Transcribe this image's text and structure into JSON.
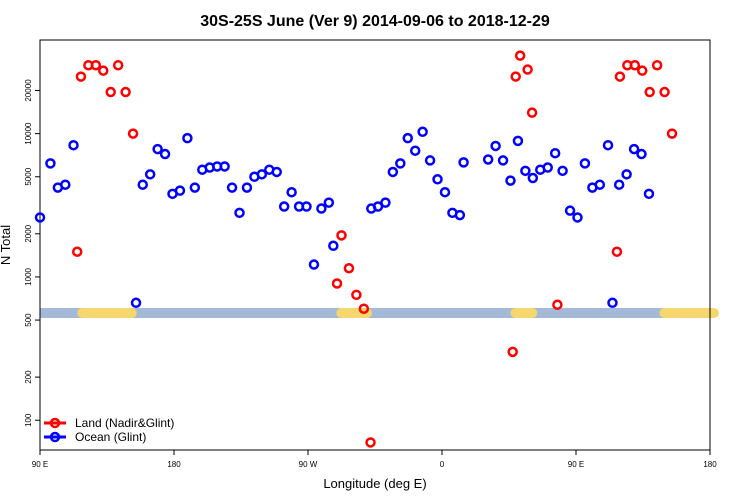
{
  "chart_data": {
    "type": "scatter",
    "title": "30S-25S June (Ver 9)   2014-09-06 to 2018-12-29",
    "xlabel": "Longitude (deg E)",
    "ylabel": "N Total",
    "yscale": "log",
    "xlim": [
      90,
      540
    ],
    "ylim": [
      62,
      45000
    ],
    "x_ticks": [
      {
        "value": 90,
        "label": "90 E"
      },
      {
        "value": 180,
        "label": "180"
      },
      {
        "value": 270,
        "label": "90 W"
      },
      {
        "value": 360,
        "label": "0"
      },
      {
        "value": 450,
        "label": "90 E"
      },
      {
        "value": 540,
        "label": "180"
      }
    ],
    "y_ticks": [
      {
        "value": 100,
        "label": "100"
      },
      {
        "value": 200,
        "label": "200"
      },
      {
        "value": 500,
        "label": "500"
      },
      {
        "value": 1000,
        "label": "1000"
      },
      {
        "value": 2000,
        "label": "2000"
      },
      {
        "value": 5000,
        "label": "5000"
      },
      {
        "value": 10000,
        "label": "10000"
      },
      {
        "value": 20000,
        "label": "20000"
      }
    ],
    "band": {
      "value": 560,
      "color": "#a4b8d8",
      "land_color": "#f5d76e",
      "land_segments": [
        [
          115,
          155
        ],
        [
          289,
          313
        ],
        [
          406,
          424
        ],
        [
          506,
          546
        ]
      ]
    },
    "series": [
      {
        "name": "Land (Nadir&Glint)",
        "color": "#ff0000",
        "points": [
          [
            115,
            1500
          ],
          [
            117.5,
            25000
          ],
          [
            122.5,
            30000
          ],
          [
            127.5,
            30000
          ],
          [
            132.5,
            27500
          ],
          [
            137.5,
            19500
          ],
          [
            142.5,
            30000
          ],
          [
            147.5,
            19500
          ],
          [
            152.5,
            10000
          ],
          [
            289.5,
            900
          ],
          [
            292.5,
            1950
          ],
          [
            297.5,
            1150
          ],
          [
            302.5,
            750
          ],
          [
            307.5,
            600
          ],
          [
            312,
            70
          ],
          [
            407.5,
            300
          ],
          [
            409.5,
            25000
          ],
          [
            412.5,
            35000
          ],
          [
            417.5,
            28000
          ],
          [
            420.5,
            14000
          ],
          [
            437.5,
            640
          ],
          [
            477.5,
            1500
          ],
          [
            479.5,
            25000
          ],
          [
            484.5,
            30000
          ],
          [
            489.5,
            30000
          ],
          [
            494.5,
            27500
          ],
          [
            499.5,
            19500
          ],
          [
            504.5,
            30000
          ],
          [
            509.5,
            19500
          ],
          [
            514.5,
            10000
          ]
        ]
      },
      {
        "name": "Ocean (Glint)",
        "color": "#0000ff",
        "points": [
          [
            90,
            2600
          ],
          [
            97,
            6200
          ],
          [
            102,
            4200
          ],
          [
            107,
            4400
          ],
          [
            112.5,
            8300
          ],
          [
            154.5,
            660
          ],
          [
            159,
            4400
          ],
          [
            164,
            5200
          ],
          [
            169,
            7800
          ],
          [
            174,
            7200
          ],
          [
            179,
            3800
          ],
          [
            184,
            4000
          ],
          [
            189,
            9300
          ],
          [
            194,
            4200
          ],
          [
            199,
            5600
          ],
          [
            204,
            5800
          ],
          [
            209,
            5900
          ],
          [
            214,
            5900
          ],
          [
            219,
            4200
          ],
          [
            224,
            2800
          ],
          [
            229,
            4200
          ],
          [
            234,
            5000
          ],
          [
            239,
            5200
          ],
          [
            244,
            5600
          ],
          [
            249,
            5400
          ],
          [
            254,
            3100
          ],
          [
            259,
            3900
          ],
          [
            264,
            3100
          ],
          [
            269,
            3100
          ],
          [
            274,
            1220
          ],
          [
            279,
            3000
          ],
          [
            284,
            3300
          ],
          [
            287,
            1650
          ],
          [
            312.5,
            3000
          ],
          [
            317,
            3100
          ],
          [
            322,
            3300
          ],
          [
            327,
            5400
          ],
          [
            332,
            6200
          ],
          [
            337,
            9300
          ],
          [
            342,
            7600
          ],
          [
            347,
            10300
          ],
          [
            352,
            6500
          ],
          [
            357,
            4800
          ],
          [
            362,
            3900
          ],
          [
            367,
            2800
          ],
          [
            372,
            2700
          ],
          [
            374.5,
            6300
          ],
          [
            391,
            6600
          ],
          [
            396,
            8200
          ],
          [
            401,
            6500
          ],
          [
            406,
            4700
          ],
          [
            411,
            8900
          ],
          [
            416,
            5500
          ],
          [
            421,
            4900
          ],
          [
            426,
            5600
          ],
          [
            431,
            5800
          ],
          [
            436,
            7300
          ],
          [
            441,
            5500
          ],
          [
            446,
            2900
          ],
          [
            451,
            2600
          ],
          [
            456,
            6200
          ],
          [
            461,
            4200
          ],
          [
            466,
            4400
          ],
          [
            471.5,
            8300
          ],
          [
            474.5,
            660
          ],
          [
            479,
            4400
          ],
          [
            484,
            5200
          ],
          [
            489,
            7800
          ],
          [
            494,
            7200
          ],
          [
            499,
            3800
          ]
        ]
      }
    ],
    "legend_position": "bottom-left"
  }
}
